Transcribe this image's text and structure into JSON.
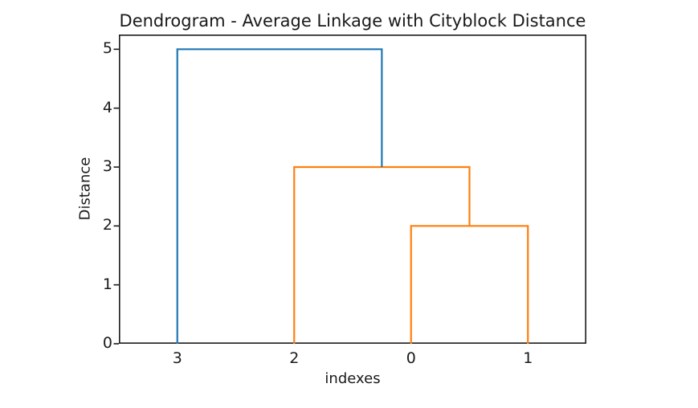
{
  "figure": {
    "background": "#ffffff"
  },
  "chart_data": {
    "type": "dendrogram",
    "title": "Dendrogram - Average Linkage with Cityblock Distance",
    "xlabel": "indexes",
    "ylabel": "Distance",
    "leaves": [
      {
        "label": "3",
        "x": 5
      },
      {
        "label": "2",
        "x": 15
      },
      {
        "label": "0",
        "x": 25
      },
      {
        "label": "1",
        "x": 35
      }
    ],
    "xlim": [
      0,
      40
    ],
    "ylim": [
      0,
      5.25
    ],
    "yticks": [
      0,
      1,
      2,
      3,
      4,
      5
    ],
    "grid": false,
    "legend": false,
    "links": [
      {
        "pair": "0+1",
        "left_x": 25,
        "left_top": 0,
        "right_x": 35,
        "right_top": 0,
        "height": 2,
        "color": "#ff7f0e"
      },
      {
        "pair": "2+(0,1)",
        "left_x": 15,
        "left_top": 0,
        "right_x": 30,
        "right_top": 2,
        "height": 3,
        "color": "#ff7f0e"
      },
      {
        "pair": "3+(2,(0,1))",
        "left_x": 5,
        "left_top": 0,
        "right_x": 22.5,
        "right_top": 3,
        "height": 5,
        "color": "#1f77b4"
      }
    ],
    "colors": {
      "above_threshold_link": "#1f77b4",
      "cluster_link": "#ff7f0e",
      "text": "#1a1a1a",
      "spine": "#1a1a1a"
    }
  }
}
